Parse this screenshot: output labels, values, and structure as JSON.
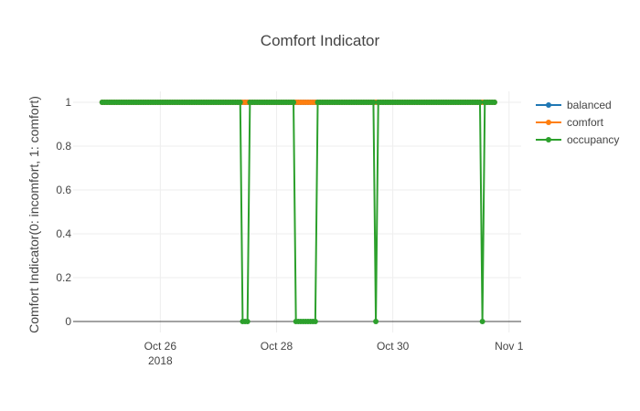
{
  "chart_data": {
    "type": "line",
    "title": "Comfort Indicator",
    "ylabel": "Comfort Indicator(0: incomfort, 1: comfort)",
    "xlabel": "",
    "x_range": [
      "2018-10-24T12:00",
      "2018-11-01T05:00"
    ],
    "ylim": [
      -0.05,
      1.05
    ],
    "x_ticks": [
      {
        "date": "2018-10-26",
        "label": "Oct 26",
        "sublabel": "2018"
      },
      {
        "date": "2018-10-28",
        "label": "Oct 28",
        "sublabel": ""
      },
      {
        "date": "2018-10-30",
        "label": "Oct 30",
        "sublabel": ""
      },
      {
        "date": "2018-11-01",
        "label": "Nov 1",
        "sublabel": ""
      }
    ],
    "y_ticks": [
      {
        "value": 0,
        "label": "0"
      },
      {
        "value": 0.2,
        "label": "0.2"
      },
      {
        "value": 0.4,
        "label": "0.4"
      },
      {
        "value": 0.6,
        "label": "0.6"
      },
      {
        "value": 0.8,
        "label": "0.8"
      },
      {
        "value": 1,
        "label": "1"
      }
    ],
    "grid": true,
    "legend_position": "top-right",
    "series": [
      {
        "name": "balanced",
        "color": "#1f77b4",
        "x": [
          "2018-10-25T00:00",
          "2018-10-31T18:00"
        ],
        "y": [
          1,
          1
        ]
      },
      {
        "name": "comfort",
        "color": "#ff7f0e",
        "x": [
          "2018-10-25T00:00",
          "2018-10-31T18:00"
        ],
        "y": [
          1,
          1
        ]
      },
      {
        "name": "occupancy",
        "color": "#2ca02c",
        "x": [
          "2018-10-25T00:00",
          "2018-10-27T09:00",
          "2018-10-27T10:00",
          "2018-10-27T12:00",
          "2018-10-27T13:00",
          "2018-10-28T07:00",
          "2018-10-28T08:00",
          "2018-10-28T16:00",
          "2018-10-28T17:00",
          "2018-10-29T16:00",
          "2018-10-29T17:00",
          "2018-10-29T18:00",
          "2018-10-31T12:00",
          "2018-10-31T13:00",
          "2018-10-31T14:00",
          "2018-10-31T18:00"
        ],
        "y": [
          1,
          1,
          0,
          0,
          1,
          1,
          0,
          0,
          1,
          1,
          0,
          1,
          1,
          0,
          1,
          1
        ]
      }
    ]
  }
}
